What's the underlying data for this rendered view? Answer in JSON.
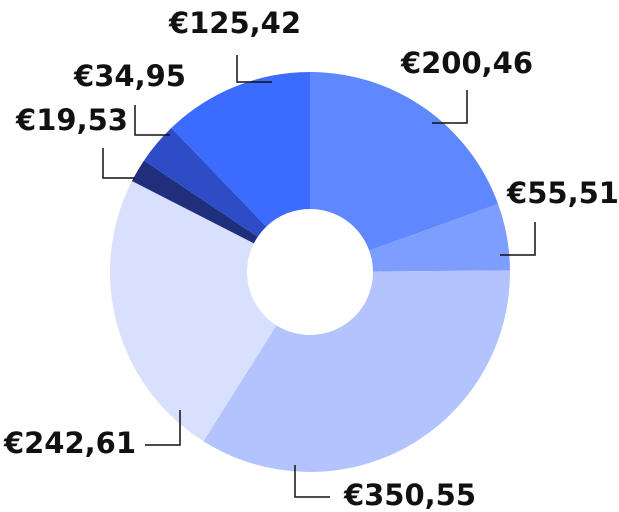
{
  "chart_data": {
    "type": "donut",
    "values": [
      200.46,
      55.51,
      350.55,
      242.61,
      19.53,
      34.95,
      125.42
    ],
    "value_labels": [
      "€200,46",
      "€55,51",
      "€350,55",
      "€242,61",
      "€19,53",
      "€34,95",
      "€125,42"
    ],
    "colors": [
      "#5f88ff",
      "#7d9dff",
      "#b3c3fe",
      "#d9e0fe",
      "#1f2f7c",
      "#2d4cc6",
      "#3b6bff"
    ]
  }
}
